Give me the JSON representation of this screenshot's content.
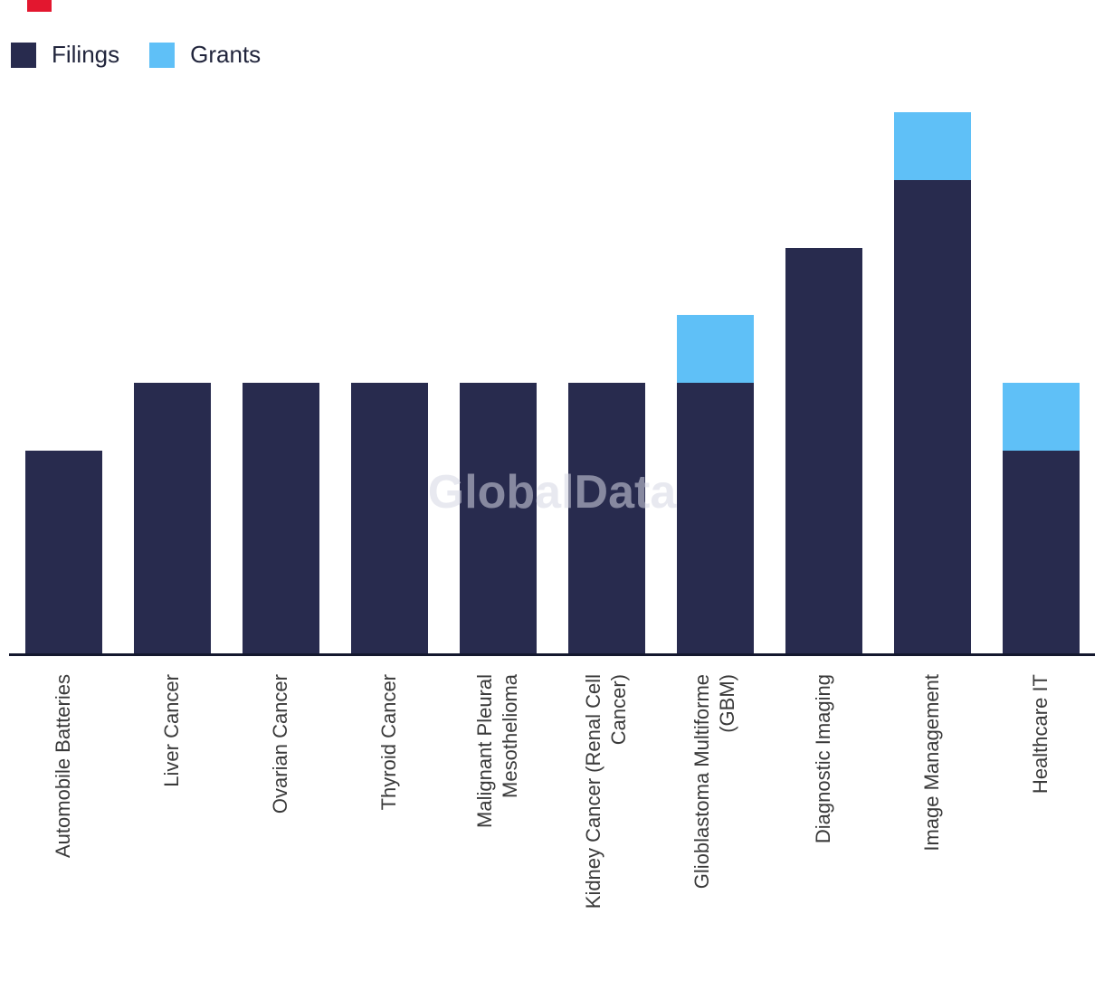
{
  "brand": {
    "mark_color": "#e3172f"
  },
  "watermark": {
    "text": "GlobalData"
  },
  "legend": {
    "items": [
      {
        "label": "Filings",
        "color": "#282b4e"
      },
      {
        "label": "Grants",
        "color": "#5fc0f7"
      }
    ]
  },
  "chart_data": {
    "type": "bar",
    "stacked": true,
    "title": "",
    "xlabel": "",
    "ylabel": "",
    "ylim": [
      0,
      8
    ],
    "grid": false,
    "y_axis_labels_visible": false,
    "legend_position": "top-left",
    "categories": [
      "Automobile Batteries",
      "Liver Cancer",
      "Ovarian Cancer",
      "Thyroid Cancer",
      "Malignant Pleural\nMesothelioma",
      "Kidney Cancer (Renal Cell\nCancer)",
      "Glioblastoma Multiforme\n(GBM)",
      "Diagnostic Imaging",
      "Image Management",
      "Healthcare IT"
    ],
    "series": [
      {
        "name": "Filings",
        "color": "#282b4e",
        "values": [
          3,
          4,
          4,
          4,
          4,
          4,
          4,
          6,
          7,
          3
        ]
      },
      {
        "name": "Grants",
        "color": "#5fc0f7",
        "values": [
          0,
          0,
          0,
          0,
          0,
          0,
          1,
          0,
          1,
          1
        ]
      }
    ]
  }
}
